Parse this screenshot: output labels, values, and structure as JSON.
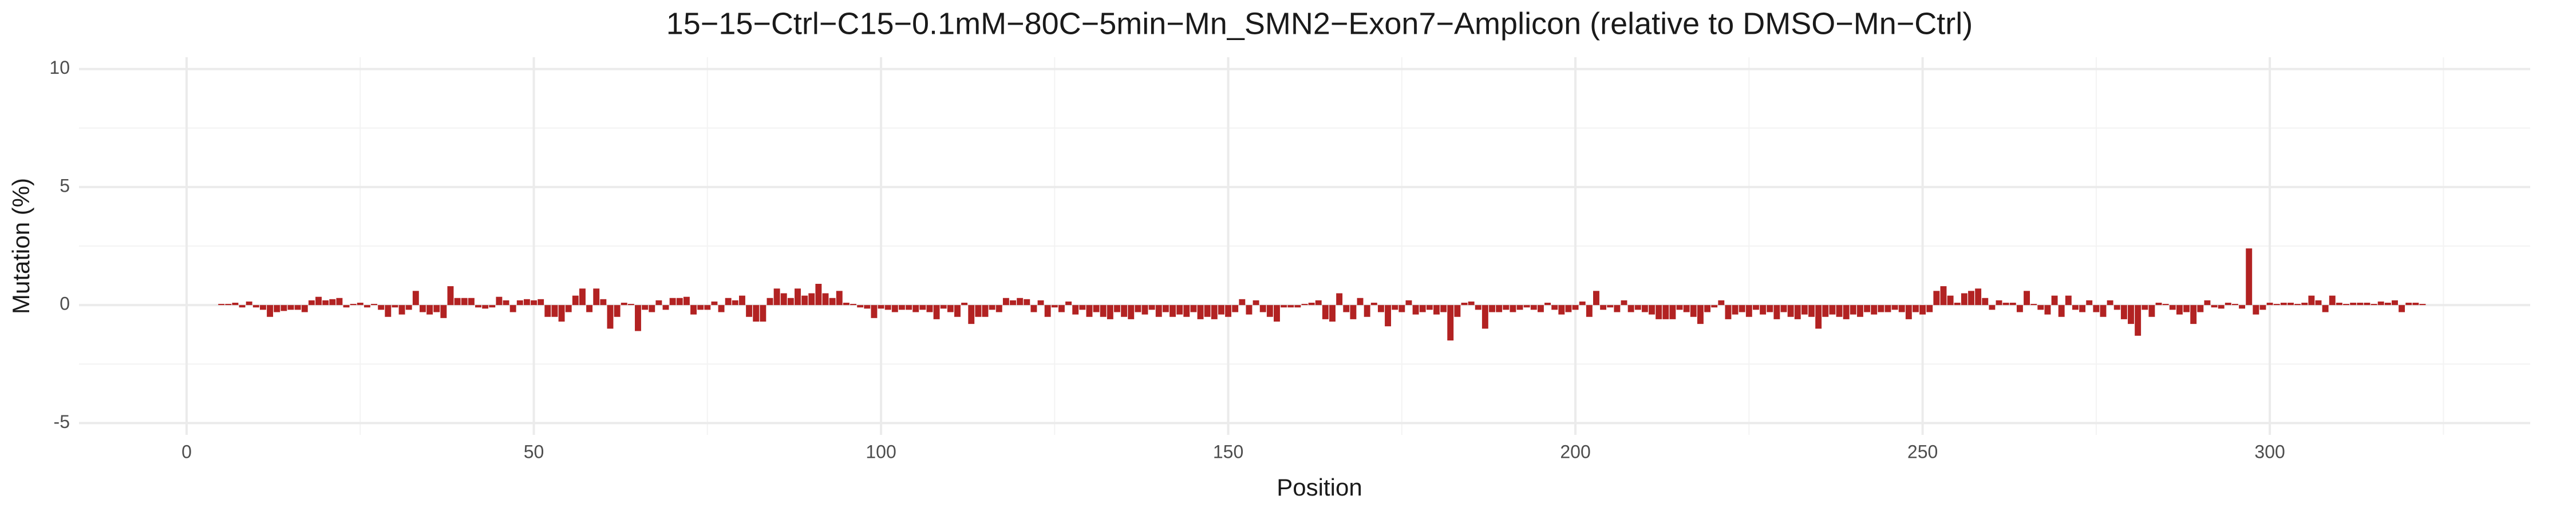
{
  "chart_data": {
    "type": "bar",
    "title": "15−15−Ctrl−C15−0.1mM−80C−5min−Mn_SMN2−Exon7−Amplicon (relative to DMSO−Mn−Ctrl)",
    "x_label": "Position",
    "y_label": "Mutation (%)",
    "color": "#b22222",
    "grid": true,
    "xlim": [
      -15.5,
      337.5
    ],
    "ylim": [
      -5.5,
      10.5
    ],
    "xticks": [
      0,
      50,
      100,
      150,
      200,
      250,
      300
    ],
    "yticks": [
      -5,
      0,
      5,
      10
    ],
    "x_minor_grid": [
      25,
      75,
      125,
      175,
      225,
      275,
      325
    ],
    "y_minor_grid": [
      -2.5,
      2.5,
      7.5
    ],
    "x": [
      1,
      2,
      3,
      4,
      5,
      6,
      7,
      8,
      9,
      10,
      11,
      12,
      13,
      14,
      15,
      16,
      17,
      18,
      19,
      20,
      21,
      22,
      23,
      24,
      25,
      26,
      27,
      28,
      29,
      30,
      31,
      32,
      33,
      34,
      35,
      36,
      37,
      38,
      39,
      40,
      41,
      42,
      43,
      44,
      45,
      46,
      47,
      48,
      49,
      50,
      51,
      52,
      53,
      54,
      55,
      56,
      57,
      58,
      59,
      60,
      61,
      62,
      63,
      64,
      65,
      66,
      67,
      68,
      69,
      70,
      71,
      72,
      73,
      74,
      75,
      76,
      77,
      78,
      79,
      80,
      81,
      82,
      83,
      84,
      85,
      86,
      87,
      88,
      89,
      90,
      91,
      92,
      93,
      94,
      95,
      96,
      97,
      98,
      99,
      100,
      101,
      102,
      103,
      104,
      105,
      106,
      107,
      108,
      109,
      110,
      111,
      112,
      113,
      114,
      115,
      116,
      117,
      118,
      119,
      120,
      121,
      122,
      123,
      124,
      125,
      126,
      127,
      128,
      129,
      130,
      131,
      132,
      133,
      134,
      135,
      136,
      137,
      138,
      139,
      140,
      141,
      142,
      143,
      144,
      145,
      146,
      147,
      148,
      149,
      150,
      151,
      152,
      153,
      154,
      155,
      156,
      157,
      158,
      159,
      160,
      161,
      162,
      163,
      164,
      165,
      166,
      167,
      168,
      169,
      170,
      171,
      172,
      173,
      174,
      175,
      176,
      177,
      178,
      179,
      180,
      181,
      182,
      183,
      184,
      185,
      186,
      187,
      188,
      189,
      190,
      191,
      192,
      193,
      194,
      195,
      196,
      197,
      198,
      199,
      200,
      201,
      202,
      203,
      204,
      205,
      206,
      207,
      208,
      209,
      210,
      211,
      212,
      213,
      214,
      215,
      216,
      217,
      218,
      219,
      220,
      221,
      222,
      223,
      224,
      225,
      226,
      227,
      228,
      229,
      230,
      231,
      232,
      233,
      234,
      235,
      236,
      237,
      238,
      239,
      240,
      241,
      242,
      243,
      244,
      245,
      246,
      247,
      248,
      249,
      250,
      251,
      252,
      253,
      254,
      255,
      256,
      257,
      258,
      259,
      260,
      261,
      262,
      263,
      264,
      265,
      266,
      267,
      268,
      269,
      270,
      271,
      272,
      273,
      274,
      275,
      276,
      277,
      278,
      279,
      280,
      281,
      282,
      283,
      284,
      285,
      286,
      287,
      288,
      289,
      290,
      291,
      292,
      293,
      294,
      295,
      296,
      297,
      298,
      299,
      300,
      301,
      302,
      303,
      304,
      305,
      306,
      307,
      308,
      309,
      310,
      311,
      312,
      313,
      314,
      315,
      316,
      317,
      318,
      319,
      320,
      321,
      322
    ],
    "values": [
      0,
      0,
      0,
      0,
      0.05,
      0.05,
      0.1,
      -0.1,
      0.15,
      -0.1,
      -0.2,
      -0.5,
      -0.3,
      -0.25,
      -0.2,
      -0.2,
      -0.3,
      0.2,
      0.35,
      0.2,
      0.25,
      0.3,
      -0.1,
      0.05,
      0.1,
      -0.1,
      0.05,
      -0.2,
      -0.5,
      -0.1,
      -0.4,
      -0.2,
      0.6,
      -0.3,
      -0.4,
      -0.3,
      -0.55,
      0.8,
      0.3,
      0.3,
      0.3,
      -0.1,
      -0.15,
      -0.1,
      0.35,
      0.2,
      -0.3,
      0.2,
      0.25,
      0.2,
      0.25,
      -0.5,
      -0.5,
      -0.7,
      -0.3,
      0.4,
      0.7,
      -0.3,
      0.7,
      0.25,
      -1.0,
      -0.5,
      0.1,
      0.05,
      -1.1,
      -0.2,
      -0.3,
      0.2,
      -0.2,
      0.3,
      0.3,
      0.35,
      -0.4,
      -0.2,
      -0.2,
      0.15,
      -0.3,
      0.3,
      0.2,
      0.4,
      -0.5,
      -0.7,
      -0.7,
      0.3,
      0.7,
      0.5,
      0.3,
      0.7,
      0.4,
      0.5,
      0.9,
      0.5,
      0.3,
      0.6,
      0.1,
      0.05,
      -0.1,
      -0.15,
      -0.55,
      -0.15,
      -0.2,
      -0.3,
      -0.2,
      -0.2,
      -0.3,
      -0.2,
      -0.3,
      -0.6,
      -0.15,
      -0.3,
      -0.5,
      0.1,
      -0.8,
      -0.5,
      -0.5,
      -0.2,
      -0.3,
      0.3,
      0.2,
      0.3,
      0.25,
      -0.3,
      0.2,
      -0.5,
      -0.1,
      -0.3,
      0.15,
      -0.4,
      -0.2,
      -0.5,
      -0.3,
      -0.5,
      -0.6,
      -0.3,
      -0.5,
      -0.6,
      -0.3,
      -0.4,
      -0.2,
      -0.5,
      -0.3,
      -0.5,
      -0.4,
      -0.5,
      -0.3,
      -0.6,
      -0.5,
      -0.6,
      -0.4,
      -0.5,
      -0.3,
      0.25,
      -0.4,
      0.2,
      -0.3,
      -0.5,
      -0.7,
      -0.1,
      -0.1,
      -0.1,
      0.05,
      0.1,
      0.2,
      -0.6,
      -0.7,
      0.5,
      -0.3,
      -0.6,
      0.3,
      -0.5,
      0.1,
      -0.3,
      -0.9,
      -0.2,
      -0.3,
      0.2,
      -0.4,
      -0.3,
      -0.2,
      -0.4,
      -0.3,
      -1.5,
      -0.5,
      0.1,
      0.15,
      -0.2,
      -1.0,
      -0.3,
      -0.3,
      -0.2,
      -0.3,
      -0.2,
      -0.1,
      -0.2,
      -0.3,
      0.1,
      -0.2,
      -0.4,
      -0.3,
      -0.2,
      0.15,
      -0.5,
      0.6,
      -0.2,
      -0.1,
      -0.3,
      0.2,
      -0.3,
      -0.2,
      -0.3,
      -0.4,
      -0.6,
      -0.6,
      -0.6,
      -0.2,
      -0.3,
      -0.5,
      -0.8,
      -0.3,
      -0.1,
      0.2,
      -0.6,
      -0.4,
      -0.3,
      -0.5,
      -0.2,
      -0.4,
      -0.3,
      -0.6,
      -0.3,
      -0.5,
      -0.6,
      -0.4,
      -0.5,
      -1.0,
      -0.5,
      -0.4,
      -0.5,
      -0.6,
      -0.4,
      -0.5,
      -0.3,
      -0.4,
      -0.3,
      -0.3,
      -0.2,
      -0.3,
      -0.6,
      -0.3,
      -0.4,
      -0.3,
      0.6,
      0.8,
      0.4,
      0.1,
      0.5,
      0.6,
      0.7,
      0.3,
      -0.2,
      0.2,
      0.1,
      0.1,
      -0.3,
      0.6,
      0.05,
      -0.2,
      -0.4,
      0.4,
      -0.5,
      0.4,
      -0.2,
      -0.3,
      0.2,
      -0.3,
      -0.5,
      0.2,
      -0.2,
      -0.6,
      -0.8,
      -1.3,
      -0.2,
      -0.5,
      0.1,
      0.05,
      -0.2,
      -0.4,
      -0.3,
      -0.8,
      -0.3,
      0.2,
      -0.1,
      -0.15,
      0.1,
      0.05,
      -0.15,
      2.4,
      -0.4,
      -0.2,
      0.1,
      0.05,
      0.1,
      0.1,
      0.05,
      0.1,
      0.4,
      0.2,
      -0.3,
      0.4,
      0.1,
      0.05,
      0.1,
      0.1,
      0.1,
      0.05,
      0.15,
      0.1,
      0.2,
      -0.3,
      0.1,
      0.1,
      0.05
    ]
  }
}
